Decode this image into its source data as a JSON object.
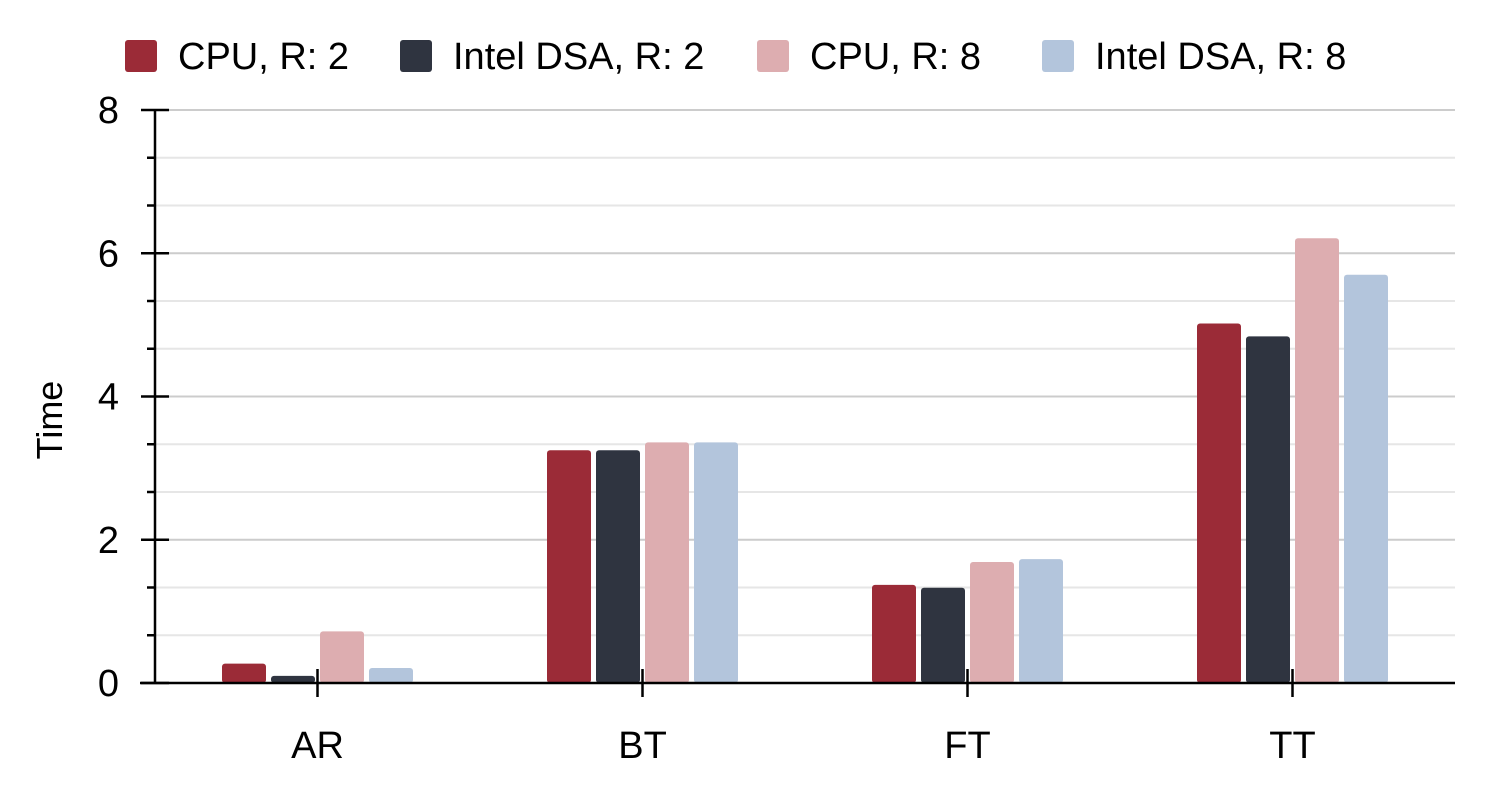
{
  "chart_data": {
    "type": "bar",
    "categories": [
      "AR",
      "BT",
      "FT",
      "TT"
    ],
    "series": [
      {
        "name": "CPU, R: 2",
        "color": "#9b2b37",
        "values": [
          0.27,
          3.25,
          1.37,
          5.02
        ]
      },
      {
        "name": "Intel DSA, R: 2",
        "color": "#2f3440",
        "values": [
          0.1,
          3.25,
          1.33,
          4.84
        ]
      },
      {
        "name": "CPU, R: 8",
        "color": "#ddadb0",
        "values": [
          0.72,
          3.36,
          1.69,
          6.21
        ]
      },
      {
        "name": "Intel DSA, R: 8",
        "color": "#b3c5dc",
        "values": [
          0.21,
          3.36,
          1.73,
          5.7
        ]
      }
    ],
    "title": "",
    "xlabel": "",
    "ylabel": "Time",
    "ylim": [
      0,
      8
    ],
    "yticks": [
      0,
      2,
      4,
      6,
      8
    ],
    "grid": true,
    "legend_position": "top"
  }
}
